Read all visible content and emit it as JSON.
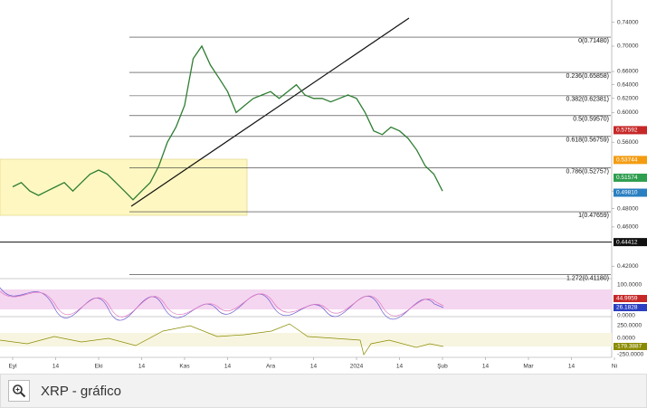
{
  "chart_data": {
    "type": "line",
    "log_scale": true,
    "color": "#2e7d32",
    "categories": [
      "Eyl",
      null,
      null,
      null,
      null,
      "14",
      null,
      null,
      null,
      null,
      "Eki",
      null,
      null,
      null,
      null,
      "14",
      null,
      null,
      null,
      null,
      "Kas",
      null,
      null,
      null,
      null,
      "14",
      null,
      null,
      null,
      null,
      "Ara",
      null,
      null,
      null,
      null,
      "14",
      null,
      null,
      null,
      null,
      "2024",
      null,
      null,
      null,
      null,
      "14",
      null,
      null,
      null,
      null,
      "Şub",
      null,
      null,
      null,
      null,
      "14",
      null,
      null,
      null,
      null,
      "Mar",
      null,
      null,
      null,
      null,
      "14",
      null,
      null,
      null,
      null,
      "Ni"
    ],
    "values": [
      0.505,
      0.51,
      0.5,
      0.495,
      0.5,
      0.505,
      0.51,
      0.5,
      0.51,
      0.52,
      0.525,
      0.52,
      0.51,
      0.5,
      0.49,
      0.5,
      0.51,
      0.53,
      0.56,
      0.58,
      0.61,
      0.68,
      0.7,
      0.67,
      0.65,
      0.63,
      0.6,
      0.61,
      0.62,
      0.625,
      0.63,
      0.62,
      0.63,
      0.64,
      0.625,
      0.62,
      0.62,
      0.615,
      0.62,
      0.625,
      0.62,
      0.6,
      0.575,
      0.57,
      0.58,
      0.575,
      0.565,
      0.55,
      0.53,
      0.52,
      0.5,
      null,
      null,
      null,
      null,
      null,
      null,
      null,
      null,
      null,
      null,
      null,
      null,
      null,
      null,
      null,
      null,
      null,
      null,
      null,
      null
    ],
    "ylim": [
      0.408,
      0.755
    ],
    "yticks": [
      {
        "value": 0.42,
        "label": "0.42000"
      },
      {
        "value": 0.46,
        "label": "0.46000"
      },
      {
        "value": 0.48,
        "label": "0.48000"
      },
      {
        "value": 0.5,
        "label": "0.50000"
      },
      {
        "value": 0.56,
        "label": "0.56000"
      },
      {
        "value": 0.6,
        "label": "0.60000"
      },
      {
        "value": 0.62,
        "label": "0.62000"
      },
      {
        "value": 0.64,
        "label": "0.64000"
      },
      {
        "value": 0.66,
        "label": "0.66000"
      },
      {
        "value": 0.7,
        "label": "0.70000"
      },
      {
        "value": 0.74,
        "label": "0.74000"
      }
    ],
    "fib_levels": [
      {
        "value": 0.7148,
        "label": "0(0.71480)"
      },
      {
        "value": 0.65858,
        "label": "0.236(0.65858)"
      },
      {
        "value": 0.62381,
        "label": "0.382(0.62381)"
      },
      {
        "value": 0.5957,
        "label": "0.5(0.59570)"
      },
      {
        "value": 0.56759,
        "label": "0.618(0.56759)"
      },
      {
        "value": 0.52757,
        "label": "0.786(0.52757)"
      },
      {
        "value": 0.47659,
        "label": "1(0.47659)"
      },
      {
        "value": 0.4118,
        "label": "1.272(0.41180)"
      }
    ],
    "price_badges": [
      {
        "value": 0.57592,
        "label": "0.57592",
        "color": "#c62828"
      },
      {
        "value": 0.53744,
        "label": "0.53744",
        "color": "#f39c12"
      },
      {
        "value": 0.51574,
        "label": "0.51574",
        "color": "#2e9e4f"
      },
      {
        "value": 0.4981,
        "label": "0.49810",
        "color": "#2a7fc1"
      },
      {
        "value": 0.44412,
        "label": "0.44412",
        "color": "#111111"
      }
    ]
  },
  "indicators": {
    "stoch_rsi": {
      "ticks": [
        "100.0000",
        "0.0000"
      ],
      "badges": [
        "44.9959",
        "26.1828"
      ]
    },
    "cci": {
      "ticks": [
        "250.0000",
        "0.0000",
        "-250.0000"
      ],
      "badges": [
        "-179.3887"
      ]
    }
  },
  "caption": "XRP - gráfico"
}
